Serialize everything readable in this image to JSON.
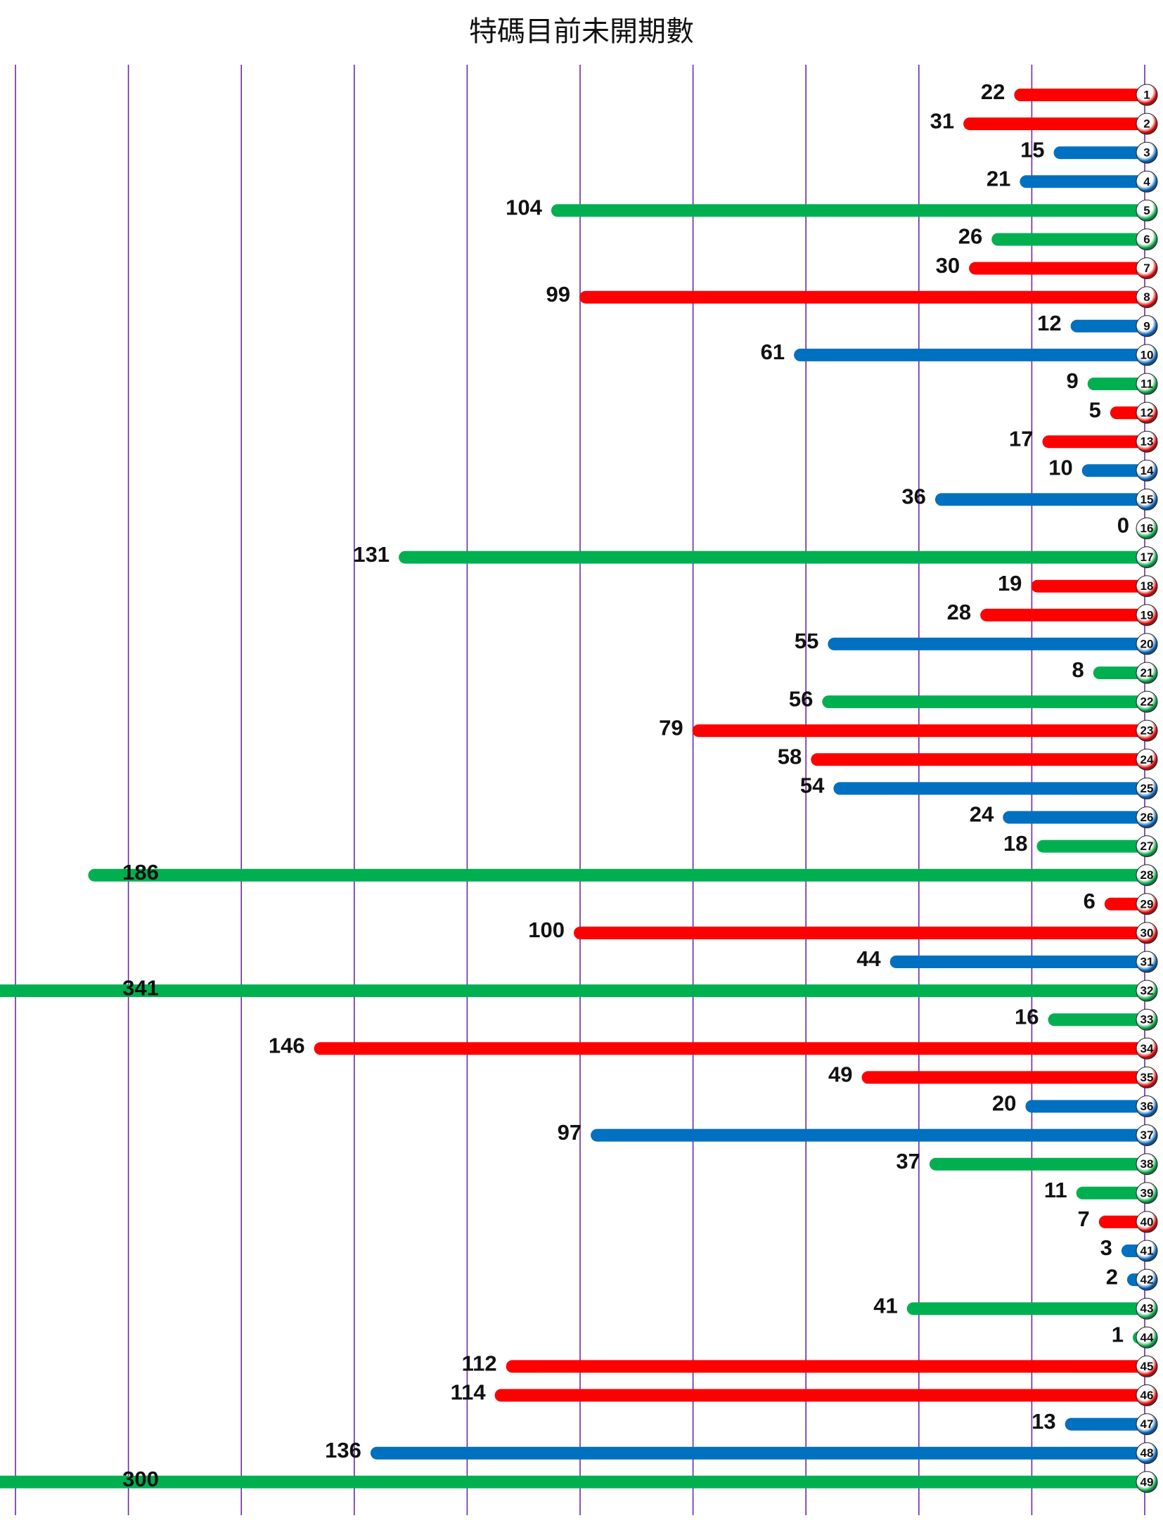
{
  "chart_data": {
    "type": "bar",
    "orientation": "horizontal",
    "title": "特碼目前未開期數",
    "xlabel": "",
    "ylabel": "",
    "grid": true,
    "categories": [
      "1",
      "2",
      "3",
      "4",
      "5",
      "6",
      "7",
      "8",
      "9",
      "10",
      "11",
      "12",
      "13",
      "14",
      "15",
      "16",
      "17",
      "18",
      "19",
      "20",
      "21",
      "22",
      "23",
      "24",
      "25",
      "26",
      "27",
      "28",
      "29",
      "30",
      "31",
      "32",
      "33",
      "34",
      "35",
      "36",
      "37",
      "38",
      "39",
      "40",
      "41",
      "42",
      "43",
      "44",
      "45",
      "46",
      "47",
      "48",
      "49"
    ],
    "values": [
      22,
      31,
      15,
      21,
      104,
      26,
      30,
      99,
      12,
      61,
      9,
      5,
      17,
      10,
      36,
      0,
      131,
      19,
      28,
      55,
      8,
      56,
      79,
      58,
      54,
      24,
      18,
      186,
      6,
      100,
      44,
      341,
      16,
      146,
      49,
      20,
      97,
      37,
      11,
      7,
      3,
      2,
      41,
      1,
      112,
      114,
      13,
      136,
      300
    ],
    "bar_colors": [
      "red",
      "red",
      "blue",
      "blue",
      "green",
      "green",
      "red",
      "red",
      "blue",
      "blue",
      "green",
      "red",
      "red",
      "blue",
      "blue",
      "green",
      "green",
      "red",
      "red",
      "blue",
      "green",
      "green",
      "red",
      "red",
      "blue",
      "blue",
      "green",
      "green",
      "red",
      "red",
      "blue",
      "green",
      "green",
      "red",
      "red",
      "blue",
      "blue",
      "green",
      "green",
      "red",
      "blue",
      "blue",
      "green",
      "green",
      "red",
      "red",
      "blue",
      "blue",
      "green"
    ],
    "palette": {
      "red": "#ff0000",
      "blue": "#0070c0",
      "green": "#00b050"
    },
    "axis_max_displayed": 200,
    "grid_step": 20
  }
}
